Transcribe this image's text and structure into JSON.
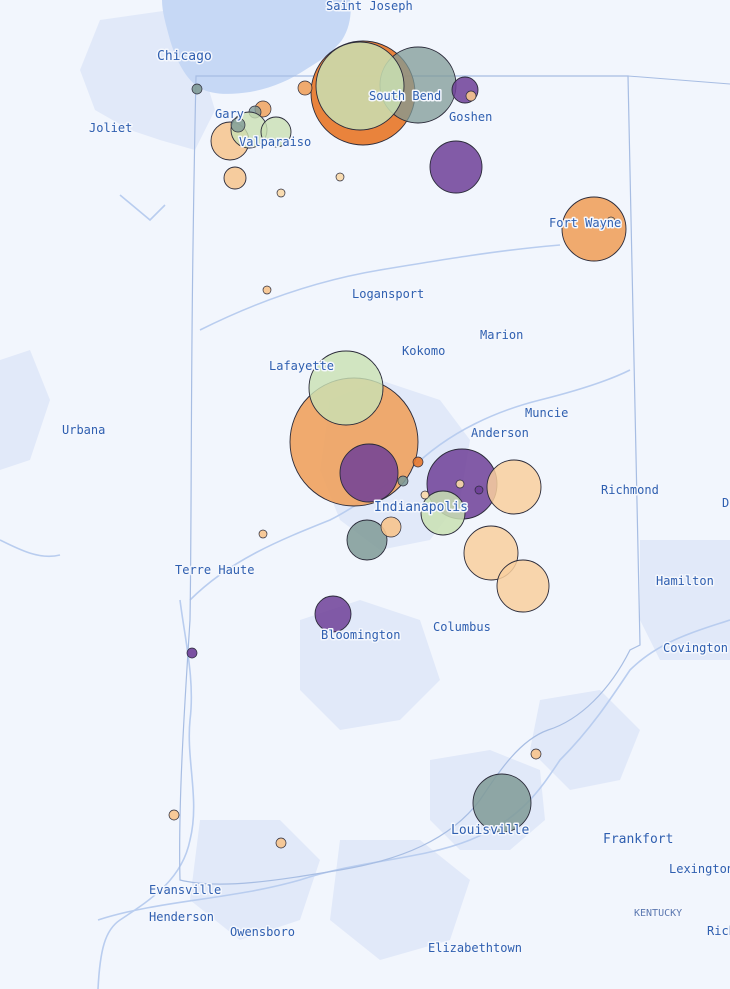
{
  "map": {
    "colors": {
      "background": "#f2f6fd",
      "water": "#c6d8f5",
      "urban": "#e0e8f9",
      "state_border": "#9fb6df",
      "rivers": "#b7cbee",
      "label": "#2f5fb0"
    },
    "labels": [
      {
        "id": "saint-joseph",
        "text": "Saint Joseph"
      },
      {
        "id": "chicago",
        "text": "Chicago"
      },
      {
        "id": "south-bend",
        "text": "South Bend"
      },
      {
        "id": "gary",
        "text": "Gary"
      },
      {
        "id": "goshen",
        "text": "Goshen"
      },
      {
        "id": "joliet",
        "text": "Joliet"
      },
      {
        "id": "valparaiso",
        "text": "Valparaiso"
      },
      {
        "id": "fort-wayne",
        "text": "Fort Wayne"
      },
      {
        "id": "logansport",
        "text": "Logansport"
      },
      {
        "id": "marion",
        "text": "Marion"
      },
      {
        "id": "kokomo",
        "text": "Kokomo"
      },
      {
        "id": "lafayette",
        "text": "Lafayette"
      },
      {
        "id": "muncie",
        "text": "Muncie"
      },
      {
        "id": "urbana",
        "text": "Urbana"
      },
      {
        "id": "anderson",
        "text": "Anderson"
      },
      {
        "id": "richmond",
        "text": "Richmond"
      },
      {
        "id": "indianapolis",
        "text": "Indianapolis"
      },
      {
        "id": "dayton",
        "text": "D"
      },
      {
        "id": "terre-haute",
        "text": "Terre Haute"
      },
      {
        "id": "hamilton",
        "text": "Hamilton"
      },
      {
        "id": "columbus",
        "text": "Columbus"
      },
      {
        "id": "bloomington",
        "text": "Bloomington"
      },
      {
        "id": "covington",
        "text": "Covington"
      },
      {
        "id": "louisville",
        "text": "Louisville"
      },
      {
        "id": "frankfort",
        "text": "Frankfort"
      },
      {
        "id": "lexington",
        "text": "Lexington"
      },
      {
        "id": "evansville",
        "text": "Evansville"
      },
      {
        "id": "henderson",
        "text": "Henderson"
      },
      {
        "id": "kentucky",
        "text": "KENTUCKY"
      },
      {
        "id": "owensboro",
        "text": "Owensboro"
      },
      {
        "id": "richmond-ky",
        "text": "Rich"
      },
      {
        "id": "elizabethtown",
        "text": "Elizabethtown"
      }
    ],
    "markers": [
      {
        "id": "sb-orange",
        "color": "#e8782b",
        "size": 52,
        "opacity": 0.92
      },
      {
        "id": "sb-gray",
        "color": "#7f9a96",
        "size": 38,
        "opacity": 0.75
      },
      {
        "id": "sb-green",
        "color": "#c9e0b3",
        "size": 44,
        "opacity": 0.85
      },
      {
        "id": "sb-purple-small",
        "color": "#6e3f98",
        "size": 13,
        "opacity": 0.85
      },
      {
        "id": "sb-peach-tiny",
        "color": "#f7c48d",
        "size": 5,
        "opacity": 0.9
      },
      {
        "id": "sb-orange-tiny",
        "color": "#f0a25e",
        "size": 7,
        "opacity": 0.9
      },
      {
        "id": "chicago-gray-tiny",
        "color": "#7f9a96",
        "size": 5,
        "opacity": 0.9
      },
      {
        "id": "gary-peach",
        "color": "#f0a25e",
        "size": 8,
        "opacity": 0.85
      },
      {
        "id": "gary-gray",
        "color": "#7f9a96",
        "size": 6,
        "opacity": 0.8
      },
      {
        "id": "valpo-peach",
        "color": "#f7c48d",
        "size": 19,
        "opacity": 0.85
      },
      {
        "id": "valpo-green",
        "color": "#c9e0b3",
        "size": 18,
        "opacity": 0.8
      },
      {
        "id": "valpo-green2",
        "color": "#c9e0b3",
        "size": 15,
        "opacity": 0.8
      },
      {
        "id": "valpo-gray",
        "color": "#7f9a96",
        "size": 7,
        "opacity": 0.8
      },
      {
        "id": "valpo-peach2",
        "color": "#f7c48d",
        "size": 11,
        "opacity": 0.85
      },
      {
        "id": "nw-tiny-1",
        "color": "#f9d9a8",
        "size": 4,
        "opacity": 0.9
      },
      {
        "id": "nw-tiny-2",
        "color": "#f9d9a8",
        "size": 4,
        "opacity": 0.9
      },
      {
        "id": "goshen-purple",
        "color": "#6e3f98",
        "size": 26,
        "opacity": 0.85
      },
      {
        "id": "fw-orange",
        "color": "#f0a25e",
        "size": 32,
        "opacity": 0.9
      },
      {
        "id": "fw-tiny",
        "color": "#f9d9a8",
        "size": 4,
        "opacity": 0.9
      },
      {
        "id": "logansport-tiny",
        "color": "#f7c48d",
        "size": 4,
        "opacity": 0.9
      },
      {
        "id": "indy-orange-big",
        "color": "#f0a25e",
        "size": 64,
        "opacity": 0.9
      },
      {
        "id": "laf-green",
        "color": "#c9e0b3",
        "size": 37,
        "opacity": 0.82
      },
      {
        "id": "indy-purple-1",
        "color": "#6e3f98",
        "size": 29,
        "opacity": 0.85
      },
      {
        "id": "indy-purple-2",
        "color": "#6e3f98",
        "size": 35,
        "opacity": 0.85
      },
      {
        "id": "indy-peach-1",
        "color": "#f9cf9d",
        "size": 27,
        "opacity": 0.85
      },
      {
        "id": "indy-green",
        "color": "#c9e0b3",
        "size": 22,
        "opacity": 0.85
      },
      {
        "id": "indy-gray",
        "color": "#7f9a96",
        "size": 20,
        "opacity": 0.85
      },
      {
        "id": "indy-peach-small",
        "color": "#f7c48d",
        "size": 10,
        "opacity": 0.9
      },
      {
        "id": "indy-orange-tiny",
        "color": "#e8782b",
        "size": 5,
        "opacity": 0.9
      },
      {
        "id": "indy-gray-tiny",
        "color": "#7f9a96",
        "size": 5,
        "opacity": 0.9
      },
      {
        "id": "indy-peach-tiny",
        "color": "#f9d9a8",
        "size": 4,
        "opacity": 0.9
      },
      {
        "id": "indy-peach-tiny2",
        "color": "#f9d9a8",
        "size": 4,
        "opacity": 0.9
      },
      {
        "id": "indy-purple-tiny",
        "color": "#6e3f98",
        "size": 4,
        "opacity": 0.9
      },
      {
        "id": "columbus-peach-1",
        "color": "#f9cf9d",
        "size": 27,
        "opacity": 0.85
      },
      {
        "id": "columbus-peach-2",
        "color": "#f9cf9d",
        "size": 26,
        "opacity": 0.85
      },
      {
        "id": "th-tiny",
        "color": "#f7c48d",
        "size": 4,
        "opacity": 0.9
      },
      {
        "id": "bloom-purple",
        "color": "#6e3f98",
        "size": 18,
        "opacity": 0.85
      },
      {
        "id": "sw-purple-tiny",
        "color": "#6e3f98",
        "size": 5,
        "opacity": 0.9
      },
      {
        "id": "lou-gray",
        "color": "#7f9a96",
        "size": 29,
        "opacity": 0.85
      },
      {
        "id": "lou-tiny",
        "color": "#f7c48d",
        "size": 5,
        "opacity": 0.9
      },
      {
        "id": "sw-tiny-1",
        "color": "#f7c48d",
        "size": 5,
        "opacity": 0.9
      },
      {
        "id": "sw-tiny-2",
        "color": "#f7c48d",
        "size": 5,
        "opacity": 0.9
      }
    ]
  }
}
